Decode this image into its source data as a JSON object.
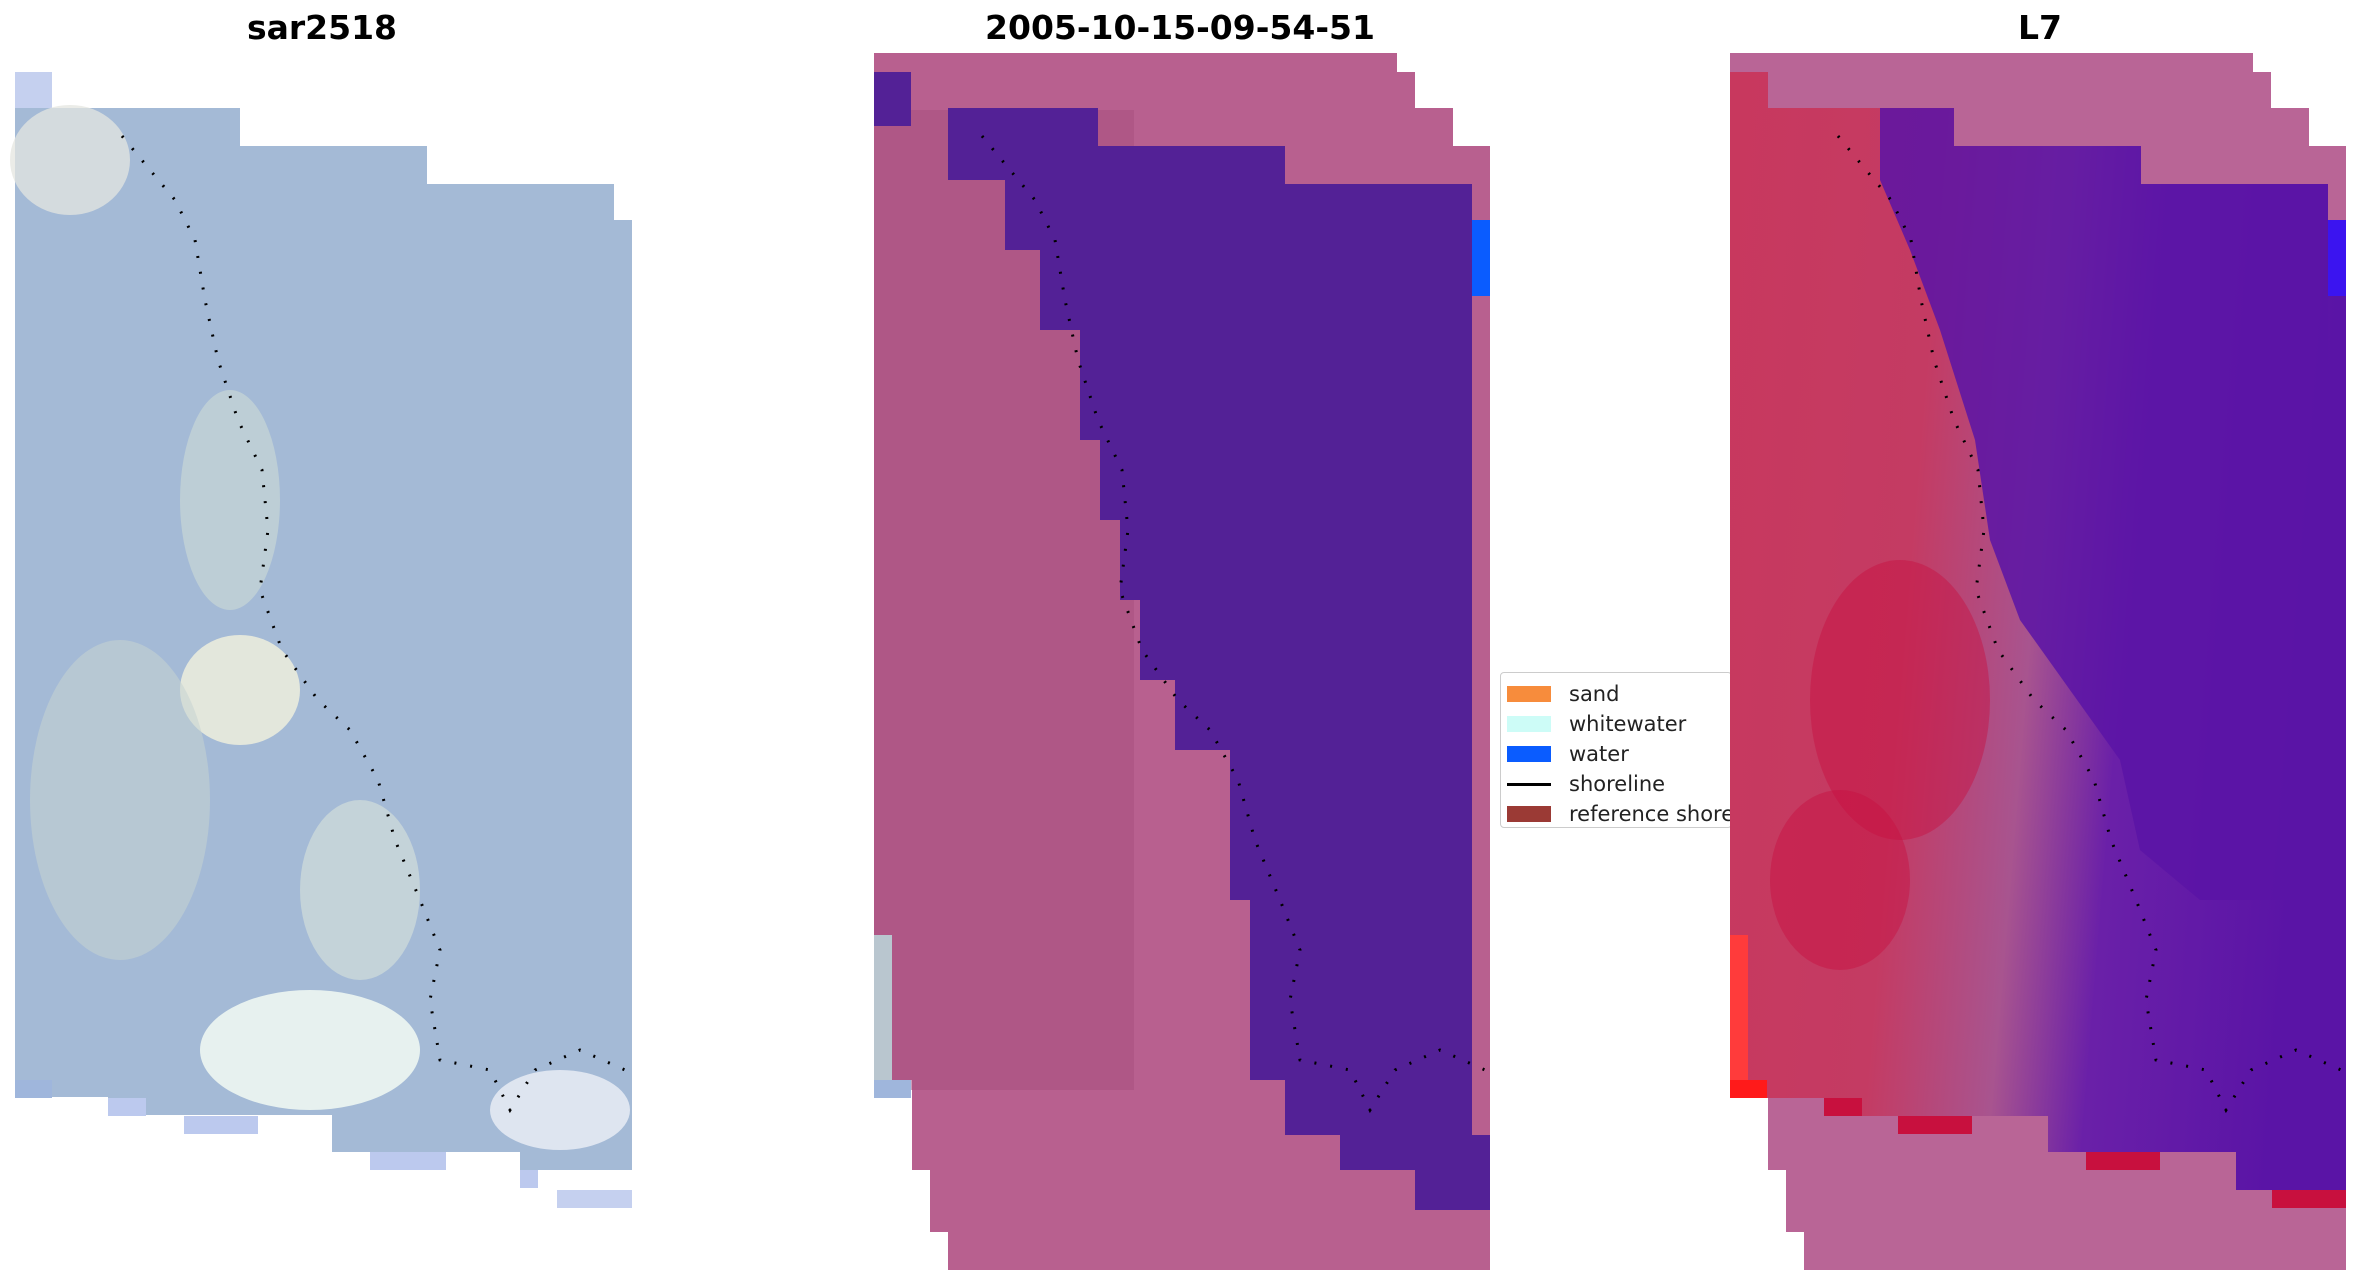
{
  "panels": [
    {
      "title": "sar2518"
    },
    {
      "title": "2005-10-15-09-54-51"
    },
    {
      "title": "L7"
    }
  ],
  "legend": {
    "items": [
      {
        "label": "sand",
        "color": "#f78c3c",
        "kind": "patch"
      },
      {
        "label": "whitewater",
        "color": "#cdfcf7",
        "kind": "patch"
      },
      {
        "label": "water",
        "color": "#0a5cff",
        "kind": "patch"
      },
      {
        "label": "shoreline",
        "color": "#000000",
        "kind": "line"
      },
      {
        "label": "reference shore",
        "color": "#9b3a35",
        "kind": "patch"
      }
    ]
  },
  "colors": {
    "rgb_base": "#a4bad6",
    "classified_sand": "#b8608f",
    "classified_water": "#532196",
    "classified_blue": "#0a5cff",
    "mndwi_land": "#c8385e",
    "mndwi_water": "#5a14a6",
    "mndwi_edge": "#b96596",
    "nodata_blue": "#bcc9ee"
  }
}
